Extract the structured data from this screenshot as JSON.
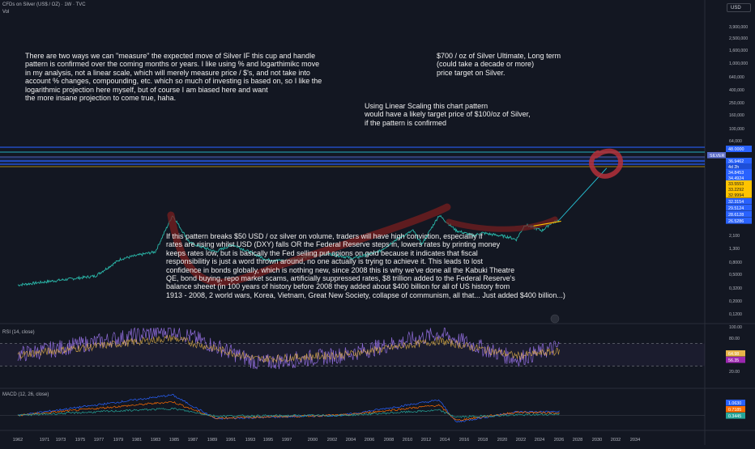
{
  "header": {
    "symbol_line": "CFDs on Silver (US$ / OZ) · 1W · TVC",
    "vol_label": "Vol",
    "currency_button": "USD"
  },
  "annotations": {
    "log_paragraph": [
      "There are two ways we can \"measure\" the expected move of Silver IF this cup and handle",
      "pattern is confirmed over the coming months or years. I like using % and logarthimikc move",
      "in my analysis, not a linear scale, which will merely measure price / $'s, and not take into",
      "account % changes, compounding, etc. which so much of investing is based on, so I like the",
      "logarithmic projection here myself, but of course I am biased here and want",
      "the more insane projection to come true, haha."
    ],
    "ultimate_target": [
      "$700 / oz of Silver Ultimate, Long term",
      "(could take a decade or more)",
      "price target on Silver."
    ],
    "linear_target": [
      "Using Linear Scaling this chart pattern",
      "would have a likely target price of $100/oz of Silver,",
      "if the pattern is confirmed"
    ],
    "breakout_paragraph": [
      "If this pattern breaks $50 USD / oz silver on volume, traders will have high conviction, especialliy if",
      "rates are rising whilst USD (DXY) falls OR the Federal Reserve steps in, lowers rates by printing money",
      "keeps rates low, but is basically the Fed selling put opions on gold because it indicates that fiscal",
      "responsibilitiy is just a word thrown around, no one actually is trying to achieve it. This leads to lost",
      "confidence in bonds globally, which is nothing new, since 2008 this is why we've done all the Kabuki Theatre",
      "QE, bond buying, repo market scams, artificially suppressed rates, $8 trillion added to the Federal Reserve's",
      "balance sheeet (in 100 years of history before 2008 they added about $400 billion for all of US history from",
      "1913 - 2008, 2 world wars, Korea, Vietnam, Great New Society, collapse of communism, all that... Just added $400 billion...)"
    ]
  },
  "price_axis": {
    "ticks": [
      "3,900,000",
      "2,500,000",
      "1,600,000",
      "1,000,000",
      "640,000",
      "400,000",
      "250,000",
      "160,000",
      "100,000",
      "64,000",
      "2,100",
      "1,300",
      "0,8000",
      "0,5000",
      "0,3200",
      "0,2000",
      "0,1200"
    ],
    "tags": [
      {
        "text": "SILVER",
        "color": "#5b6cc8"
      },
      {
        "text": "36.9462",
        "color": "#2962ff"
      },
      {
        "text": "4d 2h",
        "color": "#1e4fd8"
      },
      {
        "text": "34.8453",
        "color": "#2962ff"
      },
      {
        "text": "34.4924",
        "color": "#2962ff"
      },
      {
        "text": "33.5553",
        "color": "#ffc400"
      },
      {
        "text": "33.2292",
        "color": "#ffc400"
      },
      {
        "text": "32.9994",
        "color": "#ffc400"
      },
      {
        "text": "32.3154",
        "color": "#2962ff"
      },
      {
        "text": "29.5124",
        "color": "#2962ff"
      },
      {
        "text": "28.6128",
        "color": "#2962ff"
      },
      {
        "text": "26.5286",
        "color": "#2962ff"
      }
    ],
    "top_tag": {
      "text": "48.0000",
      "color": "#2962ff"
    }
  },
  "rsi_pane": {
    "label": "RSI (14, close)",
    "ticks": [
      "100.00",
      "80.00",
      "40.00",
      "20.00"
    ],
    "tags": [
      {
        "text": "64.98",
        "color": "#e8b54a"
      },
      {
        "text": "56.35",
        "color": "#9c27b0"
      }
    ]
  },
  "macd_pane": {
    "label": "MACD (12, 26, close)",
    "tags": [
      {
        "text": "1.0630",
        "color": "#2962ff"
      },
      {
        "text": "0.7185",
        "color": "#ff6d00"
      },
      {
        "text": "0.3445",
        "color": "#26a69a"
      }
    ]
  },
  "time_axis": [
    "1962",
    "1971",
    "1973",
    "1975",
    "1977",
    "1979",
    "1981",
    "1983",
    "1985",
    "1987",
    "1989",
    "1991",
    "1993",
    "1995",
    "1997",
    "2000",
    "2002",
    "2004",
    "2006",
    "2008",
    "2010",
    "2012",
    "2014",
    "2016",
    "2018",
    "2020",
    "2022",
    "2024",
    "2026",
    "2028",
    "2030",
    "2032",
    "2034"
  ],
  "colors": {
    "background": "#131722",
    "price_line": "#2ab7a9",
    "cup_handle_drawing": "#7a1f1f",
    "target_line": "#26c6da",
    "rsi_line": "#8e6bd8",
    "macd_line": "#2962ff",
    "signal_line": "#ff6d00"
  },
  "chart_data": [
    {
      "type": "line",
      "title": "CFDs on Silver (US$ / OZ) · 1W · TVC",
      "scale": "log",
      "x": [
        1962,
        1971,
        1974,
        1978,
        1980,
        1982,
        1985,
        1987,
        1991,
        1993,
        1998,
        2001,
        2004,
        2006,
        2008,
        2009,
        2011,
        2013,
        2015,
        2016,
        2019,
        2020,
        2021,
        2023,
        2024,
        2025
      ],
      "series": [
        {
          "values": [
            0.9,
            1.5,
            4.0,
            6.0,
            48.0,
            10.0,
            6.0,
            9.0,
            3.8,
            3.6,
            5.5,
            4.1,
            6.0,
            12.0,
            20.0,
            9.0,
            48.0,
            20.0,
            15.0,
            17.5,
            14.0,
            12.0,
            28.0,
            20.0,
            30.0,
            36.9
          ]
        }
      ]
    },
    {
      "type": "line",
      "title": "RSI (14, close)",
      "ylim": [
        0,
        100
      ],
      "x": [
        1962,
        1980,
        1990,
        2000,
        2011,
        2020,
        2025
      ],
      "series": [
        {
          "values": [
            50,
            95,
            35,
            50,
            88,
            42,
            64.98
          ]
        },
        {
          "values": [
            50,
            80,
            42,
            50,
            75,
            48,
            56.35
          ]
        }
      ]
    },
    {
      "type": "line",
      "title": "MACD (12, 26, close)",
      "x": [
        1962,
        1980,
        1985,
        2000,
        2011,
        2013,
        2020,
        2025
      ],
      "series": [
        {
          "values": [
            0.0,
            6.0,
            -1.0,
            0.1,
            4.5,
            -2.0,
            1.0,
            1.063
          ]
        },
        {
          "values": [
            0.0,
            4.0,
            -0.8,
            0.1,
            3.0,
            -1.5,
            0.9,
            0.7185
          ]
        },
        {
          "values": [
            0.0,
            2.0,
            -0.2,
            0.0,
            1.5,
            -0.5,
            0.1,
            0.3445
          ]
        }
      ]
    }
  ]
}
